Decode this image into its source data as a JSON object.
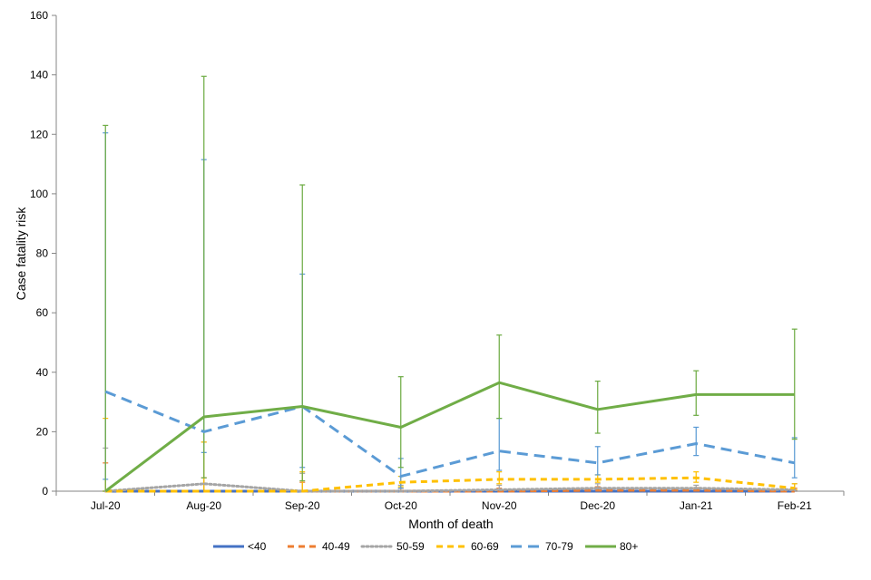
{
  "chart_data": {
    "type": "line",
    "title": "",
    "xlabel": "Month of death",
    "ylabel": "Case fatality risk",
    "ylim": [
      0,
      160
    ],
    "yticks": [
      0,
      20,
      40,
      60,
      80,
      100,
      120,
      140,
      160
    ],
    "grid": false,
    "legend_position": "bottom",
    "categories": [
      "Jul-20",
      "Aug-20",
      "Sep-20",
      "Oct-20",
      "Nov-20",
      "Dec-20",
      "Jan-21",
      "Feb-21"
    ],
    "series": [
      {
        "name": "<40",
        "color": "#4472c4",
        "dash": "solid",
        "values": [
          0,
          0,
          0,
          0,
          0,
          0,
          0,
          0
        ],
        "lower": [
          0,
          0,
          0,
          0,
          0,
          0,
          0,
          0
        ],
        "upper": [
          0,
          0,
          0,
          0,
          0.1,
          0.1,
          0.1,
          0.1
        ]
      },
      {
        "name": "40-49",
        "color": "#ed7d31",
        "dash": "dash",
        "values": [
          0,
          0,
          0,
          0,
          0,
          0.3,
          0.3,
          0
        ],
        "lower": [
          0,
          0,
          0,
          0,
          0,
          0,
          0,
          0
        ],
        "upper": [
          9.5,
          4.5,
          3.0,
          1.0,
          1.0,
          1.5,
          1.2,
          1.0
        ]
      },
      {
        "name": "50-59",
        "color": "#a5a5a5",
        "dash": "dot",
        "values": [
          0,
          2.5,
          0,
          0,
          0.5,
          1.0,
          1.0,
          0.5
        ],
        "lower": [
          0,
          0,
          0,
          0,
          0,
          0,
          0.5,
          0
        ],
        "upper": [
          14.5,
          16.5,
          6.0,
          2.0,
          2.0,
          2.5,
          2.0,
          2.5
        ]
      },
      {
        "name": "60-69",
        "color": "#ffc000",
        "dash": "dash",
        "values": [
          0,
          0,
          0,
          3.0,
          4.0,
          4.0,
          4.5,
          1.0
        ],
        "lower": [
          0,
          0,
          0,
          1.5,
          2.5,
          3.0,
          3.0,
          0.5
        ],
        "upper": [
          24.5,
          16.5,
          6.5,
          5.0,
          6.5,
          5.5,
          6.5,
          2.5
        ]
      },
      {
        "name": "70-79",
        "color": "#5b9bd5",
        "dash": "longdash",
        "values": [
          33.5,
          20.0,
          28.5,
          5.0,
          13.5,
          9.5,
          16.0,
          9.5
        ],
        "lower": [
          4.0,
          13.0,
          8.0,
          1.0,
          7.0,
          5.5,
          12.0,
          4.5
        ],
        "upper": [
          120.5,
          111.5,
          73.0,
          11.0,
          24.5,
          15.0,
          21.5,
          18.0
        ]
      },
      {
        "name": "80+",
        "color": "#70ad47",
        "dash": "solid",
        "values": [
          0,
          25.0,
          28.5,
          21.5,
          36.5,
          27.5,
          32.5,
          32.5
        ],
        "lower": [
          0,
          4.5,
          3.5,
          8.0,
          24.5,
          19.5,
          25.5,
          17.5
        ],
        "upper": [
          123.0,
          139.5,
          103.0,
          38.5,
          52.5,
          37.0,
          40.5,
          54.5
        ]
      }
    ]
  }
}
